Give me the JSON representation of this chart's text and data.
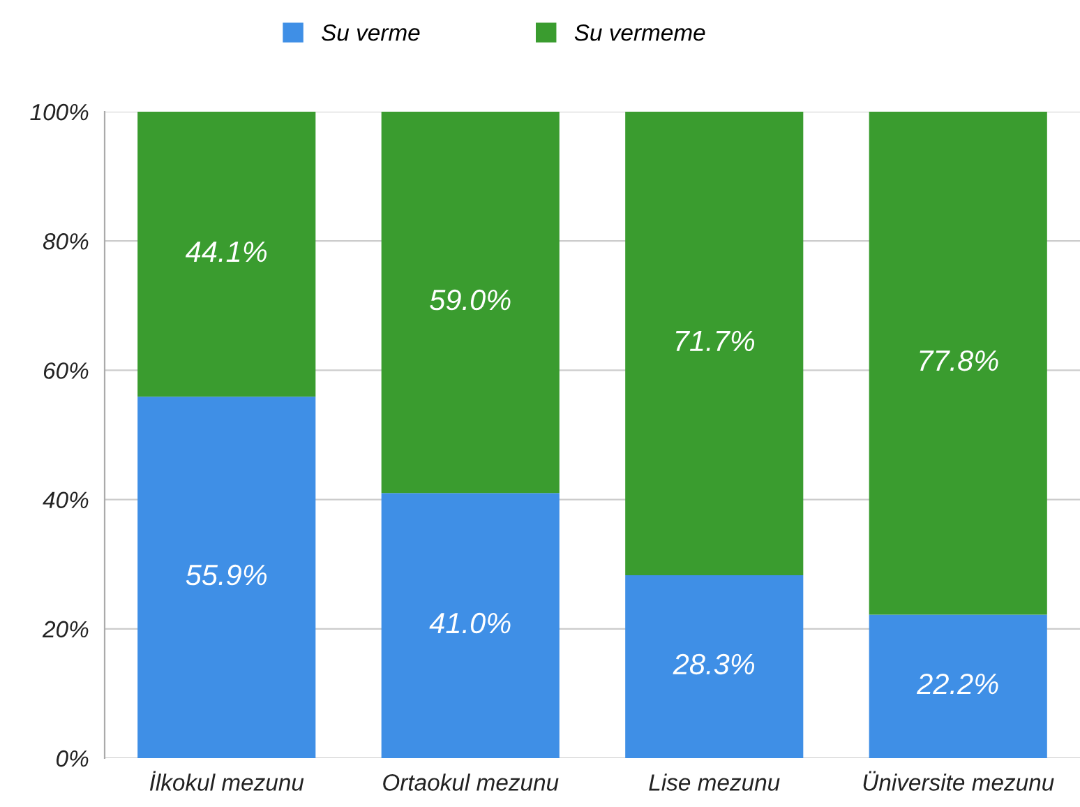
{
  "chart_data": {
    "type": "bar",
    "stacked": true,
    "categories": [
      "İlkokul mezunu",
      "Ortaokul mezunu",
      "Lise mezunu",
      "Üniversite mezunu"
    ],
    "series": [
      {
        "name": "Su verme",
        "color": "#3f8fe6",
        "values": [
          55.9,
          41.0,
          28.3,
          22.2
        ],
        "value_labels": [
          "55.9%",
          "41.0%",
          "28.3%",
          "22.2%"
        ]
      },
      {
        "name": "Su vermeme",
        "color": "#3a9c2f",
        "values": [
          44.1,
          59.0,
          71.7,
          77.8
        ],
        "value_labels": [
          "44.1%",
          "59.0%",
          "71.7%",
          "77.8%"
        ]
      }
    ],
    "ylim": [
      0,
      100
    ],
    "yticks": [
      {
        "value": 0,
        "label": "0%"
      },
      {
        "value": 20,
        "label": "20%"
      },
      {
        "value": 40,
        "label": "40%"
      },
      {
        "value": 60,
        "label": "60%"
      },
      {
        "value": 80,
        "label": "80%"
      },
      {
        "value": 100,
        "label": "100%"
      }
    ],
    "grid": "y",
    "legend": "top"
  }
}
